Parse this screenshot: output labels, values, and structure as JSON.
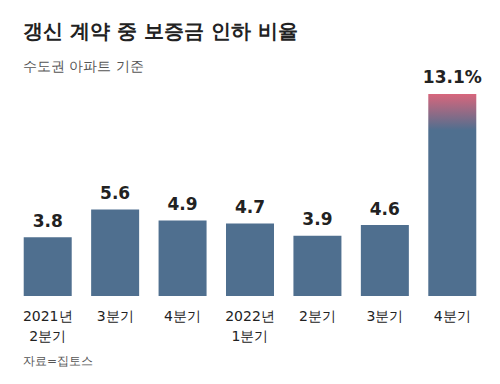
{
  "chart_data": {
    "type": "bar",
    "title": "갱신 계약 중 보증금 인하 비율",
    "subtitle": "수도권 아파트 기준",
    "source": "자료=집토스",
    "categories": [
      "2021년\n2분기",
      "3분기",
      "4분기",
      "2022년\n1분기",
      "2분기",
      "3분기",
      "4분기"
    ],
    "values": [
      3.8,
      5.6,
      4.9,
      4.7,
      3.9,
      4.6,
      13.1
    ],
    "value_labels": [
      "3.8",
      "5.6",
      "4.9",
      "4.7",
      "3.9",
      "4.6",
      "13.1%"
    ],
    "colors": [
      "#4f6f8f",
      "#4f6f8f",
      "#4f6f8f",
      "#4f6f8f",
      "#4f6f8f",
      "#4f6f8f",
      "#d8667c"
    ],
    "ylim": [
      0,
      14
    ],
    "grid": false,
    "data_labels": true,
    "tick_labels": "x"
  }
}
